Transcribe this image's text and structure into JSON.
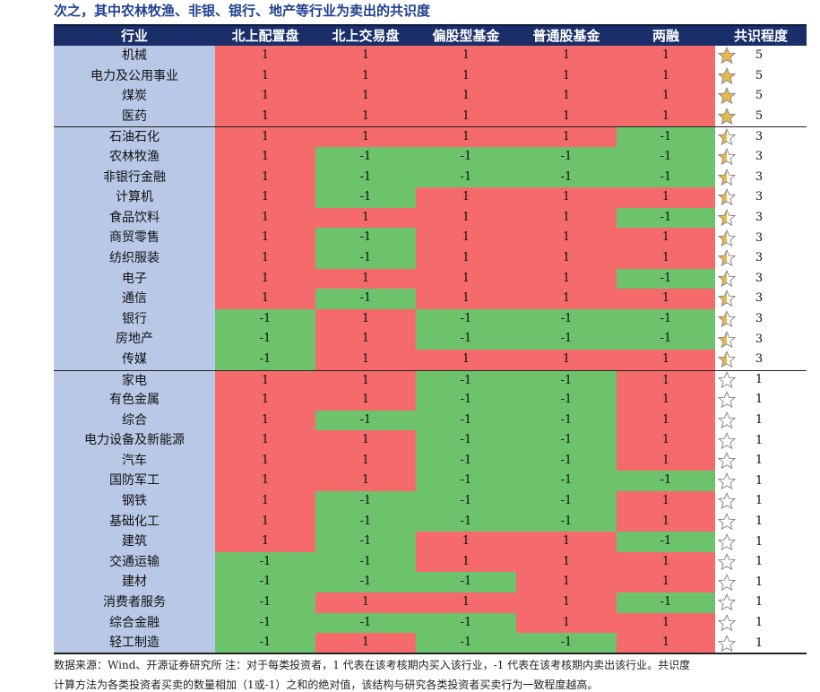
{
  "title": "次之，其中农林牧渔、非银、银行、地产等行业为卖出的共识度",
  "headers": [
    "行业",
    "北上配置盘",
    "北上交易盘",
    "偏股型基金",
    "普通股基金",
    "两融",
    "共识程度"
  ],
  "rows": [
    {
      "name": "机械",
      "v": [
        "1",
        "1",
        "1",
        "1",
        "1"
      ],
      "consensus": "5",
      "star": "full"
    },
    {
      "name": "电力及公用事业",
      "v": [
        "1",
        "1",
        "1",
        "1",
        "1"
      ],
      "consensus": "5",
      "star": "full"
    },
    {
      "name": "煤炭",
      "v": [
        "1",
        "1",
        "1",
        "1",
        "1"
      ],
      "consensus": "5",
      "star": "full"
    },
    {
      "name": "医药",
      "v": [
        "1",
        "1",
        "1",
        "1",
        "1"
      ],
      "consensus": "5",
      "star": "full"
    },
    {
      "name": "石油石化",
      "v": [
        "1",
        "1",
        "1",
        "1",
        "-1"
      ],
      "consensus": "3",
      "star": "half"
    },
    {
      "name": "农林牧渔",
      "v": [
        "1",
        "-1",
        "-1",
        "-1",
        "-1"
      ],
      "consensus": "3",
      "star": "half"
    },
    {
      "name": "非银行金融",
      "v": [
        "1",
        "-1",
        "-1",
        "-1",
        "-1"
      ],
      "consensus": "3",
      "star": "half"
    },
    {
      "name": "计算机",
      "v": [
        "1",
        "-1",
        "1",
        "1",
        "1"
      ],
      "consensus": "3",
      "star": "half"
    },
    {
      "name": "食品饮料",
      "v": [
        "1",
        "1",
        "1",
        "1",
        "-1"
      ],
      "consensus": "3",
      "star": "half"
    },
    {
      "name": "商贸零售",
      "v": [
        "1",
        "-1",
        "1",
        "1",
        "1"
      ],
      "consensus": "3",
      "star": "half"
    },
    {
      "name": "纺织服装",
      "v": [
        "1",
        "-1",
        "1",
        "1",
        "1"
      ],
      "consensus": "3",
      "star": "half"
    },
    {
      "name": "电子",
      "v": [
        "1",
        "1",
        "1",
        "1",
        "-1"
      ],
      "consensus": "3",
      "star": "half"
    },
    {
      "name": "通信",
      "v": [
        "1",
        "-1",
        "1",
        "1",
        "1"
      ],
      "consensus": "3",
      "star": "half"
    },
    {
      "name": "银行",
      "v": [
        "-1",
        "1",
        "-1",
        "-1",
        "-1"
      ],
      "consensus": "3",
      "star": "half"
    },
    {
      "name": "房地产",
      "v": [
        "-1",
        "1",
        "-1",
        "-1",
        "-1"
      ],
      "consensus": "3",
      "star": "half"
    },
    {
      "name": "传媒",
      "v": [
        "-1",
        "1",
        "1",
        "1",
        "1"
      ],
      "consensus": "3",
      "star": "half"
    },
    {
      "name": "家电",
      "v": [
        "1",
        "1",
        "-1",
        "-1",
        "1"
      ],
      "consensus": "1",
      "star": "empty"
    },
    {
      "name": "有色金属",
      "v": [
        "1",
        "1",
        "-1",
        "-1",
        "1"
      ],
      "consensus": "1",
      "star": "empty"
    },
    {
      "name": "综合",
      "v": [
        "1",
        "-1",
        "-1",
        "-1",
        "1"
      ],
      "consensus": "1",
      "star": "empty"
    },
    {
      "name": "电力设备及新能源",
      "v": [
        "1",
        "1",
        "-1",
        "-1",
        "1"
      ],
      "consensus": "1",
      "star": "empty"
    },
    {
      "name": "汽车",
      "v": [
        "1",
        "1",
        "-1",
        "-1",
        "1"
      ],
      "consensus": "1",
      "star": "empty"
    },
    {
      "name": "国防军工",
      "v": [
        "1",
        "1",
        "-1",
        "-1",
        "-1"
      ],
      "consensus": "1",
      "star": "empty"
    },
    {
      "name": "钢铁",
      "v": [
        "1",
        "-1",
        "-1",
        "-1",
        "1"
      ],
      "consensus": "1",
      "star": "empty"
    },
    {
      "name": "基础化工",
      "v": [
        "1",
        "-1",
        "-1",
        "-1",
        "1"
      ],
      "consensus": "1",
      "star": "empty"
    },
    {
      "name": "建筑",
      "v": [
        "1",
        "-1",
        "1",
        "1",
        "-1"
      ],
      "consensus": "1",
      "star": "empty"
    },
    {
      "name": "交通运输",
      "v": [
        "-1",
        "-1",
        "1",
        "1",
        "1"
      ],
      "consensus": "1",
      "star": "empty"
    },
    {
      "name": "建材",
      "v": [
        "-1",
        "-1",
        "-1",
        "1",
        "1"
      ],
      "consensus": "1",
      "star": "empty"
    },
    {
      "name": "消费者服务",
      "v": [
        "-1",
        "1",
        "1",
        "1",
        "-1"
      ],
      "consensus": "1",
      "star": "empty"
    },
    {
      "name": "综合金融",
      "v": [
        "-1",
        "-1",
        "-1",
        "1",
        "1"
      ],
      "consensus": "1",
      "star": "empty"
    },
    {
      "name": "轻工制造",
      "v": [
        "-1",
        "1",
        "-1",
        "-1",
        "1"
      ],
      "consensus": "1",
      "star": "empty"
    }
  ],
  "colors": {
    "buy": "#f56b6b",
    "sell": "#6cc36c",
    "industry": "#b8c8e6",
    "header": "#1a2f6a",
    "star": "#e8b84a"
  },
  "note": "数据来源：Wind、开源证券研究所 注：对于每类投资者，1 代表在该考核期内买入该行业，-1 代表在该考核期内卖出该行业。共识度",
  "note2": "计算方法为各类投资者买卖的数量相加（1或-1）之和的绝对值，该结构与研究各类投资者买卖行为一致程度越高。"
}
